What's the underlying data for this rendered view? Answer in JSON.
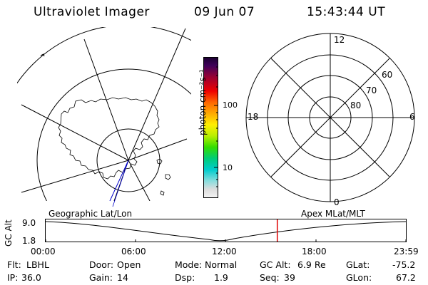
{
  "header": {
    "instrument": "Ultraviolet Imager",
    "date": "09 Jun 07",
    "time": "15:43:44 UT"
  },
  "colorbar": {
    "label": "photon cm⁻²s⁻¹",
    "ticks": [
      "100",
      "10"
    ]
  },
  "polar_plot": {
    "mlt_labels": {
      "top": "12",
      "left": "18",
      "right": "6",
      "bottom": "0"
    },
    "lat_labels": [
      "60",
      "70",
      "80"
    ]
  },
  "timeline": {
    "left_caption": "Geographic Lat/Lon",
    "right_caption": "Apex MLat/MLT",
    "axis_label": "GC Alt",
    "y_max": "9.0",
    "y_min": "1.8",
    "time_ticks": [
      "00:00",
      "06:00",
      "12:00",
      "18:00",
      "23:59"
    ],
    "current_time_fraction": 0.643,
    "marker_color": "#e00000"
  },
  "info": {
    "flt": {
      "label": "Flt:",
      "value": "LBHL"
    },
    "ip": {
      "label": "IP:",
      "value": "36.0"
    },
    "door": {
      "label": "Door:",
      "value": "Open"
    },
    "gain": {
      "label": "Gain:",
      "value": "14"
    },
    "mode": {
      "label": "Mode:",
      "value": "Normal"
    },
    "dsp": {
      "label": "Dsp:",
      "value": "1.9"
    },
    "gcalt": {
      "label": "GC Alt:",
      "value": "6.9 Re"
    },
    "seq": {
      "label": "Seq:",
      "value": "39"
    },
    "glat": {
      "label": "GLat:",
      "value": "-75.2"
    },
    "glon": {
      "label": "GLon:",
      "value": "67.2"
    }
  }
}
